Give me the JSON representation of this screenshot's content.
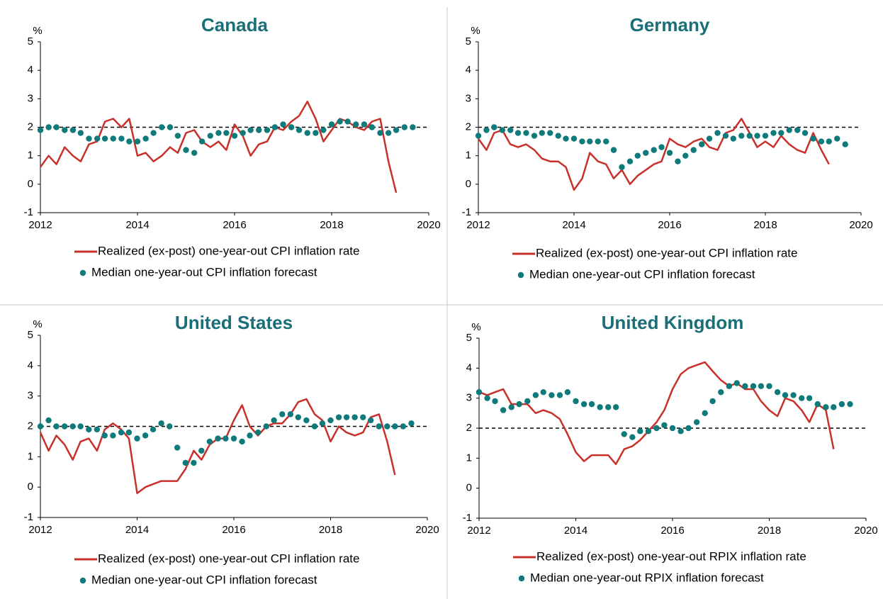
{
  "chart_data": [
    {
      "type": "line",
      "title": "Canada",
      "y_unit": "%",
      "reference_line": 2,
      "xlim": [
        2012,
        2020
      ],
      "xticks": [
        2012,
        2014,
        2016,
        2018,
        2020
      ],
      "ylim": [
        -1,
        5
      ],
      "yticks": [
        -1,
        0,
        1,
        2,
        3,
        4,
        5
      ],
      "x": [
        2012,
        2012.17,
        2012.33,
        2012.5,
        2012.67,
        2012.83,
        2013,
        2013.17,
        2013.33,
        2013.5,
        2013.67,
        2013.83,
        2014,
        2014.17,
        2014.33,
        2014.5,
        2014.67,
        2014.83,
        2015,
        2015.17,
        2015.33,
        2015.5,
        2015.67,
        2015.83,
        2016,
        2016.17,
        2016.33,
        2016.5,
        2016.67,
        2016.83,
        2017,
        2017.17,
        2017.33,
        2017.5,
        2017.67,
        2017.83,
        2018,
        2018.17,
        2018.33,
        2018.5,
        2018.67,
        2018.83,
        2019,
        2019.17,
        2019.33,
        2019.5,
        2019.67
      ],
      "series": [
        {
          "name": "Realized (ex-post) one-year-out CPI inflation rate",
          "color": "#c8312a",
          "mode": "line",
          "values": [
            0.6,
            1.0,
            0.7,
            1.3,
            1.0,
            0.8,
            1.4,
            1.5,
            2.2,
            2.3,
            2.0,
            2.3,
            1.0,
            1.1,
            0.8,
            1.0,
            1.3,
            1.1,
            1.8,
            1.9,
            1.5,
            1.3,
            1.5,
            1.2,
            2.1,
            1.7,
            1.0,
            1.4,
            1.5,
            2.0,
            1.9,
            2.2,
            2.4,
            2.9,
            2.3,
            1.5,
            1.9,
            2.3,
            2.2,
            2.0,
            1.9,
            2.2,
            2.3,
            0.8,
            -0.3,
            null,
            null
          ]
        },
        {
          "name": "Median one-year-out CPI inflation forecast",
          "color": "#0f7a7a",
          "mode": "markers",
          "values": [
            1.9,
            2.0,
            2.0,
            1.9,
            1.9,
            1.8,
            1.6,
            1.6,
            1.6,
            1.6,
            1.6,
            1.5,
            1.5,
            1.6,
            1.8,
            2.0,
            2.0,
            1.7,
            1.2,
            1.1,
            1.5,
            1.7,
            1.8,
            1.8,
            1.7,
            1.8,
            1.9,
            1.9,
            1.9,
            2.0,
            2.1,
            2.0,
            1.9,
            1.8,
            1.8,
            1.9,
            2.1,
            2.2,
            2.2,
            2.1,
            2.1,
            2.0,
            1.8,
            1.8,
            1.9,
            2.0,
            2.0
          ]
        }
      ]
    },
    {
      "type": "line",
      "title": "Germany",
      "y_unit": "%",
      "reference_line": 2,
      "xlim": [
        2012,
        2020
      ],
      "xticks": [
        2012,
        2014,
        2016,
        2018,
        2020
      ],
      "ylim": [
        -1,
        5
      ],
      "yticks": [
        -1,
        0,
        1,
        2,
        3,
        4,
        5
      ],
      "x": [
        2012,
        2012.17,
        2012.33,
        2012.5,
        2012.67,
        2012.83,
        2013,
        2013.17,
        2013.33,
        2013.5,
        2013.67,
        2013.83,
        2014,
        2014.17,
        2014.33,
        2014.5,
        2014.67,
        2014.83,
        2015,
        2015.17,
        2015.33,
        2015.5,
        2015.67,
        2015.83,
        2016,
        2016.17,
        2016.33,
        2016.5,
        2016.67,
        2016.83,
        2017,
        2017.17,
        2017.33,
        2017.5,
        2017.67,
        2017.83,
        2018,
        2018.17,
        2018.33,
        2018.5,
        2018.67,
        2018.83,
        2019,
        2019.17,
        2019.33,
        2019.5,
        2019.67
      ],
      "series": [
        {
          "name": "Realized (ex-post) one-year-out CPI inflation rate",
          "color": "#c8312a",
          "mode": "line",
          "values": [
            1.6,
            1.2,
            1.8,
            1.9,
            1.4,
            1.3,
            1.4,
            1.2,
            0.9,
            0.8,
            0.8,
            0.6,
            -0.2,
            0.2,
            1.1,
            0.8,
            0.7,
            0.2,
            0.5,
            0.0,
            0.3,
            0.5,
            0.7,
            0.8,
            1.6,
            1.4,
            1.3,
            1.5,
            1.6,
            1.3,
            1.2,
            1.8,
            1.9,
            2.3,
            1.8,
            1.3,
            1.5,
            1.3,
            1.7,
            1.4,
            1.2,
            1.1,
            1.8,
            1.2,
            0.7,
            null,
            null
          ]
        },
        {
          "name": "Median one-year-out CPI inflation forecast",
          "color": "#0f7a7a",
          "mode": "markers",
          "values": [
            1.7,
            1.9,
            2.0,
            1.9,
            1.9,
            1.8,
            1.8,
            1.7,
            1.8,
            1.8,
            1.7,
            1.6,
            1.6,
            1.5,
            1.5,
            1.5,
            1.5,
            1.2,
            0.6,
            0.8,
            1.0,
            1.1,
            1.2,
            1.3,
            1.1,
            0.8,
            1.0,
            1.2,
            1.4,
            1.6,
            1.8,
            1.7,
            1.6,
            1.7,
            1.7,
            1.7,
            1.7,
            1.8,
            1.8,
            1.9,
            1.9,
            1.8,
            1.6,
            1.5,
            1.5,
            1.6,
            1.4
          ]
        }
      ]
    },
    {
      "type": "line",
      "title": "United States",
      "y_unit": "%",
      "reference_line": 2,
      "xlim": [
        2012,
        2020
      ],
      "xticks": [
        2012,
        2014,
        2016,
        2018,
        2020
      ],
      "ylim": [
        -1,
        5
      ],
      "yticks": [
        -1,
        0,
        1,
        2,
        3,
        4,
        5
      ],
      "x": [
        2012,
        2012.17,
        2012.33,
        2012.5,
        2012.67,
        2012.83,
        2013,
        2013.17,
        2013.33,
        2013.5,
        2013.67,
        2013.83,
        2014,
        2014.17,
        2014.33,
        2014.5,
        2014.67,
        2014.83,
        2015,
        2015.17,
        2015.33,
        2015.5,
        2015.67,
        2015.83,
        2016,
        2016.17,
        2016.33,
        2016.5,
        2016.67,
        2016.83,
        2017,
        2017.17,
        2017.33,
        2017.5,
        2017.67,
        2017.83,
        2018,
        2018.17,
        2018.33,
        2018.5,
        2018.67,
        2018.83,
        2019,
        2019.17,
        2019.33,
        2019.5,
        2019.67
      ],
      "series": [
        {
          "name": "Realized (ex-post) one-year-out CPI inflation rate",
          "color": "#c8312a",
          "mode": "line",
          "values": [
            1.8,
            1.2,
            1.7,
            1.4,
            0.9,
            1.5,
            1.6,
            1.2,
            1.9,
            2.1,
            1.9,
            1.6,
            -0.2,
            0.0,
            0.1,
            0.2,
            0.2,
            0.2,
            0.6,
            1.2,
            0.9,
            1.4,
            1.6,
            1.6,
            2.2,
            2.7,
            2.0,
            1.7,
            2.0,
            2.1,
            2.1,
            2.4,
            2.8,
            2.9,
            2.4,
            2.2,
            1.5,
            2.0,
            1.8,
            1.7,
            1.8,
            2.3,
            2.4,
            1.5,
            0.4,
            null,
            null
          ]
        },
        {
          "name": "Median one-year-out CPI inflation forecast",
          "color": "#0f7a7a",
          "mode": "markers",
          "values": [
            2.0,
            2.2,
            2.0,
            2.0,
            2.0,
            2.0,
            1.9,
            1.9,
            1.7,
            1.7,
            1.8,
            1.8,
            1.6,
            1.7,
            1.9,
            2.1,
            2.0,
            1.3,
            0.8,
            0.8,
            1.2,
            1.5,
            1.6,
            1.6,
            1.6,
            1.5,
            1.7,
            1.8,
            2.0,
            2.2,
            2.4,
            2.4,
            2.3,
            2.2,
            2.0,
            2.1,
            2.2,
            2.3,
            2.3,
            2.3,
            2.3,
            2.2,
            2.0,
            2.0,
            2.0,
            2.0,
            2.1
          ]
        }
      ]
    },
    {
      "type": "line",
      "title": "United Kingdom",
      "y_unit": "%",
      "reference_line": 2,
      "xlim": [
        2012,
        2020
      ],
      "xticks": [
        2012,
        2014,
        2016,
        2018,
        2020
      ],
      "ylim": [
        -1,
        5
      ],
      "yticks": [
        -1,
        0,
        1,
        2,
        3,
        4,
        5
      ],
      "x": [
        2012,
        2012.17,
        2012.33,
        2012.5,
        2012.67,
        2012.83,
        2013,
        2013.17,
        2013.33,
        2013.5,
        2013.67,
        2013.83,
        2014,
        2014.17,
        2014.33,
        2014.5,
        2014.67,
        2014.83,
        2015,
        2015.17,
        2015.33,
        2015.5,
        2015.67,
        2015.83,
        2016,
        2016.17,
        2016.33,
        2016.5,
        2016.67,
        2016.83,
        2017,
        2017.17,
        2017.33,
        2017.5,
        2017.67,
        2017.83,
        2018,
        2018.17,
        2018.33,
        2018.5,
        2018.67,
        2018.83,
        2019,
        2019.17,
        2019.33,
        2019.5,
        2019.67
      ],
      "series": [
        {
          "name": "Realized (ex-post) one-year-out RPIX inflation rate",
          "color": "#c8312a",
          "mode": "line",
          "values": [
            3.2,
            3.1,
            3.2,
            3.3,
            2.8,
            2.8,
            2.8,
            2.5,
            2.6,
            2.5,
            2.3,
            1.8,
            1.2,
            0.9,
            1.1,
            1.1,
            1.1,
            0.8,
            1.3,
            1.4,
            1.6,
            1.9,
            2.2,
            2.6,
            3.3,
            3.8,
            4.0,
            4.1,
            4.2,
            3.9,
            3.6,
            3.4,
            3.5,
            3.3,
            3.3,
            2.9,
            2.6,
            2.4,
            3.0,
            2.9,
            2.6,
            2.2,
            2.8,
            2.6,
            1.3,
            null,
            null
          ]
        },
        {
          "name": "Median one-year-out RPIX inflation forecast",
          "color": "#0f7a7a",
          "mode": "markers",
          "values": [
            3.2,
            3.0,
            2.9,
            2.6,
            2.7,
            2.8,
            2.9,
            3.1,
            3.2,
            3.1,
            3.1,
            3.2,
            2.9,
            2.8,
            2.8,
            2.7,
            2.7,
            2.7,
            1.8,
            1.7,
            1.9,
            1.9,
            2.0,
            2.1,
            2.0,
            1.9,
            2.0,
            2.2,
            2.5,
            2.9,
            3.2,
            3.4,
            3.5,
            3.4,
            3.4,
            3.4,
            3.4,
            3.2,
            3.1,
            3.1,
            3.0,
            3.0,
            2.8,
            2.7,
            2.7,
            2.8,
            2.8
          ]
        }
      ]
    }
  ]
}
